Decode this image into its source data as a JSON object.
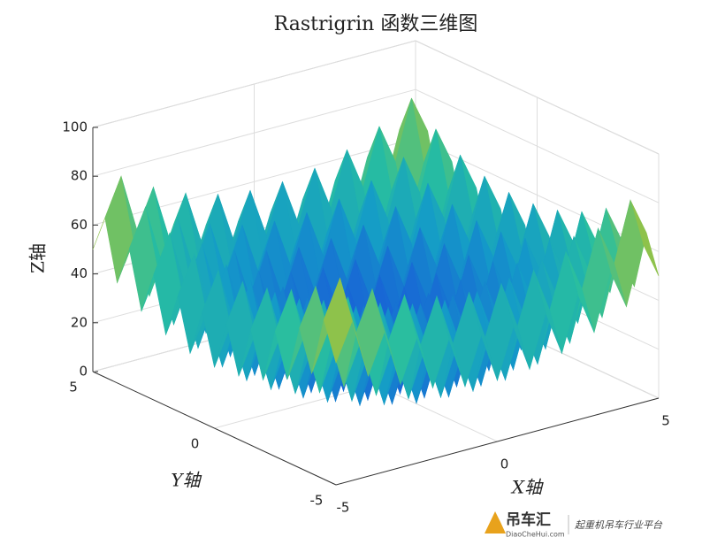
{
  "chart_data": {
    "type": "surface",
    "title": "Rastrigrin 函数三维图",
    "xlabel": "X轴",
    "ylabel": "Y轴",
    "zlabel": "Z轴",
    "x": [
      -5,
      -4.5,
      -4,
      -3.5,
      -3,
      -2.5,
      -2,
      -1.5,
      -1,
      -0.5,
      0,
      0.5,
      1,
      1.5,
      2,
      2.5,
      3,
      3.5,
      4,
      4.5,
      5
    ],
    "y": [
      -5,
      -4.5,
      -4,
      -3.5,
      -3,
      -2.5,
      -2,
      -1.5,
      -1,
      -0.5,
      0,
      0.5,
      1,
      1.5,
      2,
      2.5,
      3,
      3.5,
      4,
      4.5,
      5
    ],
    "z": [
      [
        50,
        65.25,
        41,
        57.25,
        34,
        51.25,
        29,
        47.25,
        26,
        45.25,
        25,
        45.25,
        26,
        47.25,
        29,
        51.25,
        34,
        57.25,
        41,
        65.25,
        50
      ],
      [
        65.25,
        80.5,
        56.25,
        72.5,
        49.25,
        66.5,
        44.25,
        62.5,
        41.25,
        60.5,
        40.25,
        60.5,
        41.25,
        62.5,
        44.25,
        66.5,
        49.25,
        72.5,
        56.25,
        80.5,
        65.25
      ],
      [
        41,
        56.25,
        32,
        48.25,
        25,
        42.25,
        20,
        38.25,
        17,
        36.25,
        16,
        36.25,
        17,
        38.25,
        20,
        42.25,
        25,
        48.25,
        32,
        56.25,
        41
      ],
      [
        57.25,
        72.5,
        48.25,
        64.5,
        41.25,
        58.5,
        36.25,
        54.5,
        33.25,
        52.5,
        32.25,
        52.5,
        33.25,
        54.5,
        36.25,
        58.5,
        41.25,
        64.5,
        48.25,
        72.5,
        57.25
      ],
      [
        34,
        49.25,
        25,
        41.25,
        18,
        35.25,
        13,
        31.25,
        10,
        29.25,
        9,
        29.25,
        10,
        31.25,
        13,
        35.25,
        18,
        41.25,
        25,
        49.25,
        34
      ],
      [
        51.25,
        66.5,
        42.25,
        58.5,
        35.25,
        52.5,
        30.25,
        48.5,
        27.25,
        46.5,
        26.25,
        46.5,
        27.25,
        48.5,
        30.25,
        52.5,
        35.25,
        58.5,
        42.25,
        66.5,
        51.25
      ],
      [
        29,
        44.25,
        20,
        36.25,
        13,
        30.25,
        8,
        26.25,
        5,
        24.25,
        4,
        24.25,
        5,
        26.25,
        8,
        30.25,
        13,
        36.25,
        20,
        44.25,
        29
      ],
      [
        47.25,
        62.5,
        38.25,
        54.5,
        31.25,
        48.5,
        26.25,
        44.5,
        23.25,
        42.5,
        22.25,
        42.5,
        23.25,
        44.5,
        26.25,
        48.5,
        31.25,
        54.5,
        38.25,
        62.5,
        47.25
      ],
      [
        26,
        41.25,
        17,
        33.25,
        10,
        27.25,
        5,
        23.25,
        2,
        21.25,
        1,
        21.25,
        2,
        23.25,
        5,
        27.25,
        10,
        33.25,
        17,
        41.25,
        26
      ],
      [
        45.25,
        60.5,
        36.25,
        52.5,
        29.25,
        46.5,
        24.25,
        42.5,
        21.25,
        40.5,
        20.25,
        40.5,
        21.25,
        42.5,
        24.25,
        46.5,
        29.25,
        52.5,
        36.25,
        60.5,
        45.25
      ],
      [
        25,
        40.25,
        16,
        32.25,
        9,
        26.25,
        4,
        22.25,
        1,
        20.25,
        0,
        20.25,
        1,
        22.25,
        4,
        26.25,
        9,
        32.25,
        16,
        40.25,
        25
      ],
      [
        45.25,
        60.5,
        36.25,
        52.5,
        29.25,
        46.5,
        24.25,
        42.5,
        21.25,
        40.5,
        20.25,
        40.5,
        21.25,
        42.5,
        24.25,
        46.5,
        29.25,
        52.5,
        36.25,
        60.5,
        45.25
      ],
      [
        26,
        41.25,
        17,
        33.25,
        10,
        27.25,
        5,
        23.25,
        2,
        21.25,
        1,
        21.25,
        2,
        23.25,
        5,
        27.25,
        10,
        33.25,
        17,
        41.25,
        26
      ],
      [
        47.25,
        62.5,
        38.25,
        54.5,
        31.25,
        48.5,
        26.25,
        44.5,
        23.25,
        42.5,
        22.25,
        42.5,
        23.25,
        44.5,
        26.25,
        48.5,
        31.25,
        54.5,
        38.25,
        62.5,
        47.25
      ],
      [
        29,
        44.25,
        20,
        36.25,
        13,
        30.25,
        8,
        26.25,
        5,
        24.25,
        4,
        24.25,
        5,
        26.25,
        8,
        30.25,
        13,
        36.25,
        20,
        44.25,
        29
      ],
      [
        51.25,
        66.5,
        42.25,
        58.5,
        35.25,
        52.5,
        30.25,
        48.5,
        27.25,
        46.5,
        26.25,
        46.5,
        27.25,
        48.5,
        30.25,
        52.5,
        35.25,
        58.5,
        42.25,
        66.5,
        51.25
      ],
      [
        34,
        49.25,
        25,
        41.25,
        18,
        35.25,
        13,
        31.25,
        10,
        29.25,
        9,
        29.25,
        10,
        31.25,
        13,
        35.25,
        18,
        41.25,
        25,
        49.25,
        34
      ],
      [
        57.25,
        72.5,
        48.25,
        64.5,
        41.25,
        58.5,
        36.25,
        54.5,
        33.25,
        52.5,
        32.25,
        52.5,
        33.25,
        54.5,
        36.25,
        58.5,
        41.25,
        64.5,
        48.25,
        72.5,
        57.25
      ],
      [
        41,
        56.25,
        32,
        48.25,
        25,
        42.25,
        20,
        38.25,
        17,
        36.25,
        16,
        36.25,
        17,
        38.25,
        20,
        42.25,
        25,
        48.25,
        32,
        56.25,
        41
      ],
      [
        65.25,
        80.5,
        56.25,
        72.5,
        49.25,
        66.5,
        44.25,
        62.5,
        41.25,
        60.5,
        40.25,
        60.5,
        41.25,
        62.5,
        44.25,
        66.5,
        49.25,
        72.5,
        56.25,
        80.5,
        65.25
      ],
      [
        50,
        65.25,
        41,
        57.25,
        34,
        51.25,
        29,
        47.25,
        26,
        45.25,
        25,
        45.25,
        26,
        47.25,
        29,
        51.25,
        34,
        57.25,
        41,
        65.25,
        50
      ]
    ],
    "xlim": [
      -5,
      5
    ],
    "ylim": [
      -5,
      5
    ],
    "zlim": [
      0,
      100
    ],
    "xticks": [
      -5,
      0,
      5
    ],
    "yticks": [
      -5,
      0,
      5
    ],
    "zticks": [
      0,
      20,
      40,
      60,
      80,
      100
    ],
    "grid": true
  },
  "watermark": {
    "brand": "吊车汇",
    "site": "DiaoCheHui.com",
    "slogan": "起重机吊车行业平台"
  }
}
